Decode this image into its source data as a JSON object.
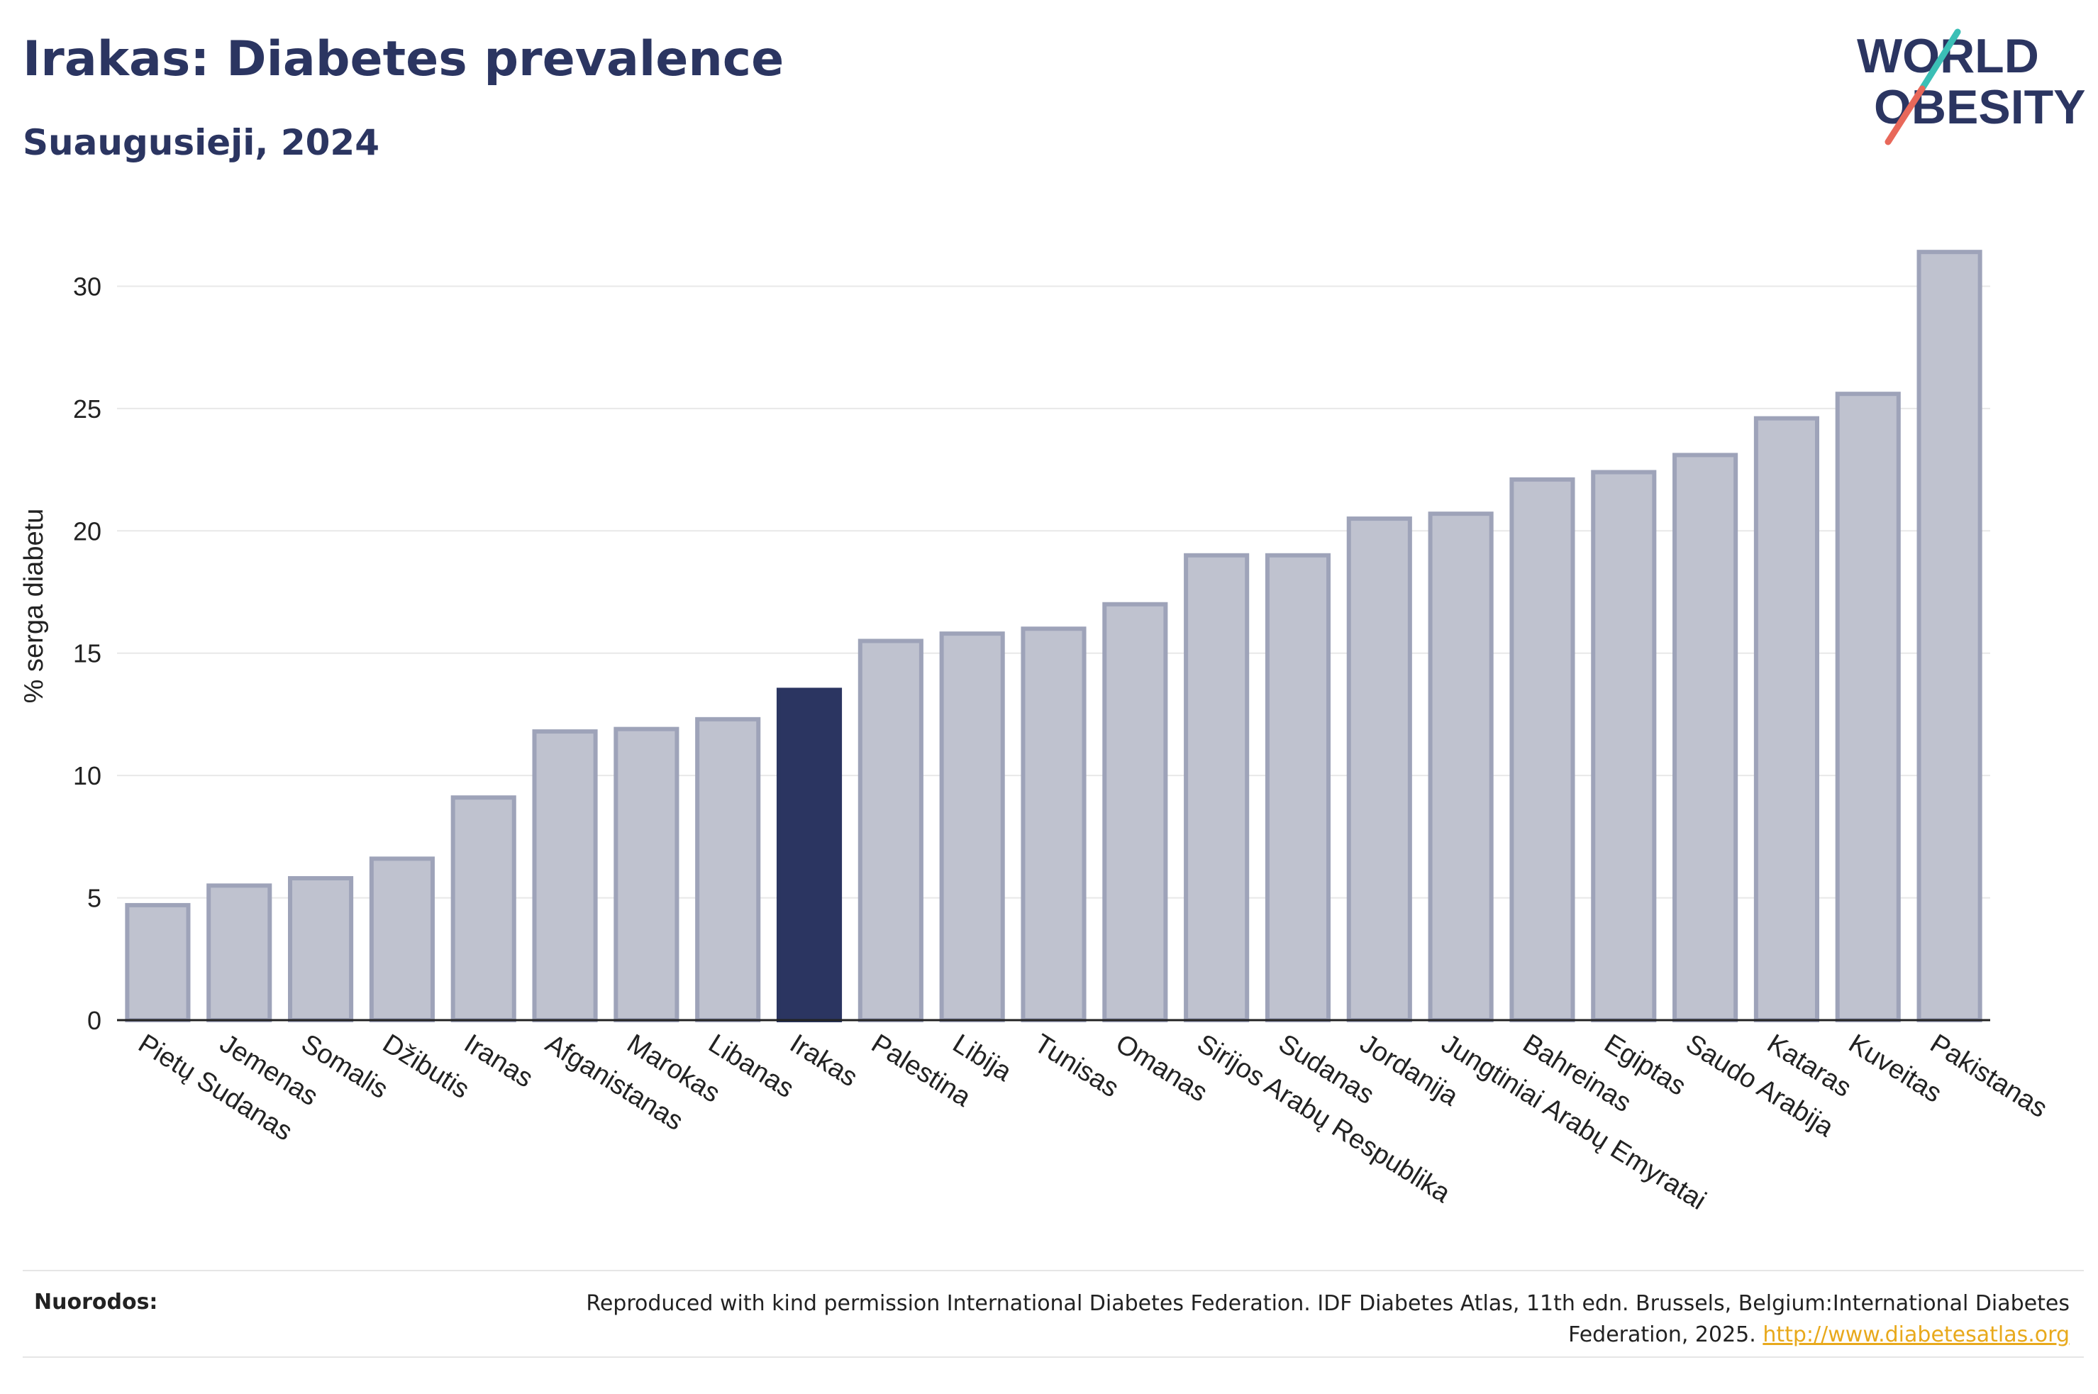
{
  "header": {
    "title": "Irakas: Diabetes prevalence",
    "subtitle": "Suaugusieji, 2024"
  },
  "logo": {
    "line1": "WORLD",
    "line2": "OBESITY",
    "colors": {
      "text": "#2b3561",
      "slash_top": "#3bbfb6",
      "slash_bottom": "#e8685a"
    }
  },
  "colors": {
    "bar_default": "#bfc2cf",
    "bar_stroke": "#9ea3b9",
    "bar_highlight": "#2b3561",
    "grid": "#e8e8e8",
    "axis": "#222222"
  },
  "chart_data": {
    "type": "bar",
    "title": "Irakas: Diabetes prevalence",
    "subtitle": "Suaugusieji, 2024",
    "ylabel": "% serga diabetu",
    "xlabel": "",
    "ylim": [
      0,
      33
    ],
    "yticks": [
      0,
      5,
      10,
      15,
      20,
      25,
      30
    ],
    "grid": true,
    "highlight": "Irakas",
    "categories": [
      "Pietų Sudanas",
      "Jemenas",
      "Somalis",
      "Džibutis",
      "Iranas",
      "Afganistanas",
      "Marokas",
      "Libanas",
      "Irakas",
      "Palestina",
      "Libija",
      "Tunisas",
      "Omanas",
      "Sirijos Arabų Respublika",
      "Sudanas",
      "Jordanija",
      "Jungtiniai Arabų Emyratai",
      "Bahreinas",
      "Egiptas",
      "Saudo Arabija",
      "Kataras",
      "Kuveitas",
      "Pakistanas"
    ],
    "values": [
      4.7,
      5.5,
      5.8,
      6.6,
      9.1,
      11.8,
      11.9,
      12.3,
      13.5,
      15.5,
      15.8,
      16.0,
      17.0,
      19.0,
      19.0,
      20.5,
      20.7,
      22.1,
      22.4,
      23.1,
      24.6,
      25.6,
      31.4
    ]
  },
  "footer": {
    "label": "Nuorodos:",
    "text": "Reproduced with kind permission International Diabetes Federation. IDF Diabetes Atlas, 11th edn. Brussels, Belgium:International Diabetes Federation, 2025. ",
    "link": "http://www.diabetesatlas.org"
  }
}
